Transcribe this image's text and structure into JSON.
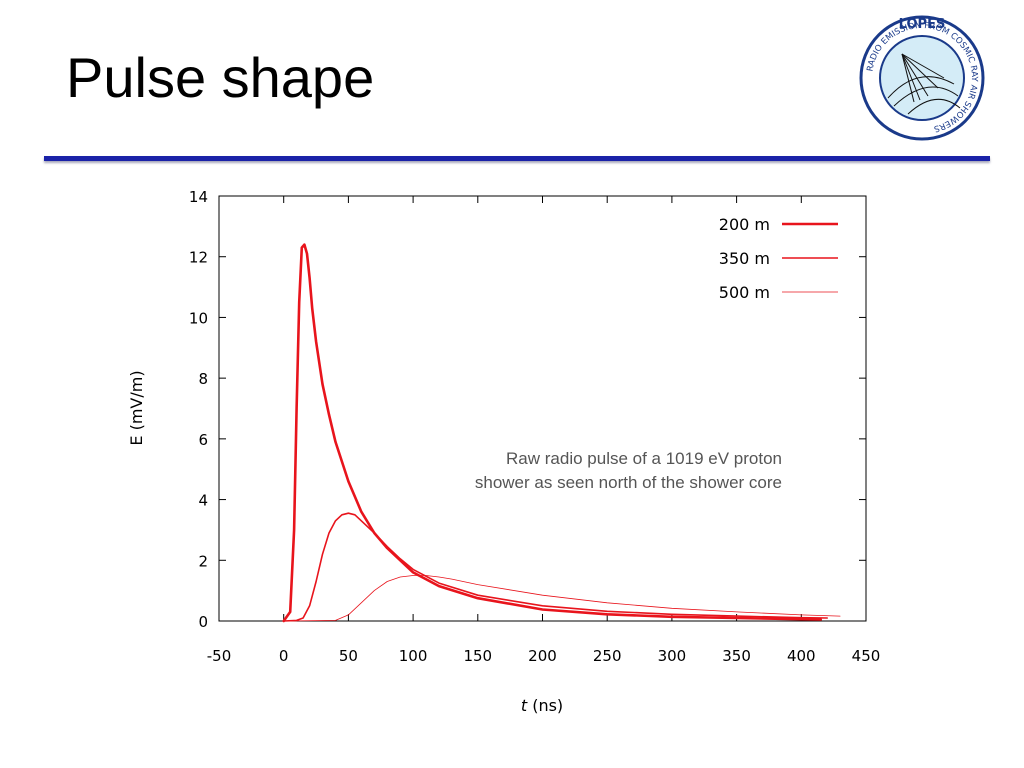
{
  "slide": {
    "title": "Pulse shape"
  },
  "logo": {
    "name": "LOPES",
    "ring_text": "RADIO EMISSION FROM COSMIC RAY AIR SHOWERS",
    "colors": {
      "ring": "#1a3a8a",
      "fill": "#d4ecf7"
    }
  },
  "chart_data": {
    "type": "line",
    "xlabel_italic": "t",
    "xlabel_rest": " (ns)",
    "ylabel": "E (mV/m)",
    "xlim": [
      -50,
      450
    ],
    "ylim": [
      0,
      14
    ],
    "xticks": [
      -50,
      0,
      50,
      100,
      150,
      200,
      250,
      300,
      350,
      400,
      450
    ],
    "yticks": [
      0,
      2,
      4,
      6,
      8,
      10,
      12,
      14
    ],
    "grid": false,
    "legend_position": "top-right",
    "annotation": [
      "Raw radio pulse of a 1019 eV proton",
      "shower as seen north of the shower core"
    ],
    "series": [
      {
        "name": "200 m",
        "color": "#e8141c",
        "width": "thick",
        "x": [
          0,
          5,
          8,
          10,
          12,
          14,
          16,
          18,
          20,
          22,
          25,
          30,
          35,
          40,
          50,
          60,
          70,
          80,
          100,
          120,
          150,
          200,
          250,
          300,
          350,
          400,
          415
        ],
        "y": [
          0,
          0.3,
          3,
          7,
          10.5,
          12.3,
          12.4,
          12.1,
          11.3,
          10.3,
          9.2,
          7.8,
          6.8,
          5.9,
          4.6,
          3.6,
          2.9,
          2.4,
          1.6,
          1.15,
          0.75,
          0.38,
          0.22,
          0.14,
          0.1,
          0.06,
          0.05
        ]
      },
      {
        "name": "350 m",
        "color": "#e8141c",
        "width": "medium",
        "x": [
          0,
          10,
          15,
          20,
          25,
          30,
          35,
          40,
          45,
          50,
          55,
          60,
          70,
          80,
          90,
          100,
          120,
          150,
          200,
          250,
          300,
          350,
          400,
          420
        ],
        "y": [
          0,
          0.02,
          0.1,
          0.5,
          1.3,
          2.2,
          2.9,
          3.3,
          3.5,
          3.55,
          3.5,
          3.3,
          2.9,
          2.45,
          2.05,
          1.7,
          1.25,
          0.85,
          0.5,
          0.32,
          0.22,
          0.16,
          0.11,
          0.1
        ]
      },
      {
        "name": "500 m",
        "color": "#e8141c",
        "width": "thin",
        "x": [
          0,
          40,
          50,
          60,
          70,
          80,
          90,
          100,
          110,
          120,
          130,
          150,
          200,
          250,
          300,
          350,
          400,
          430
        ],
        "y": [
          0,
          0.02,
          0.2,
          0.6,
          1.0,
          1.3,
          1.45,
          1.5,
          1.5,
          1.45,
          1.38,
          1.2,
          0.85,
          0.6,
          0.42,
          0.3,
          0.2,
          0.16
        ]
      }
    ]
  }
}
